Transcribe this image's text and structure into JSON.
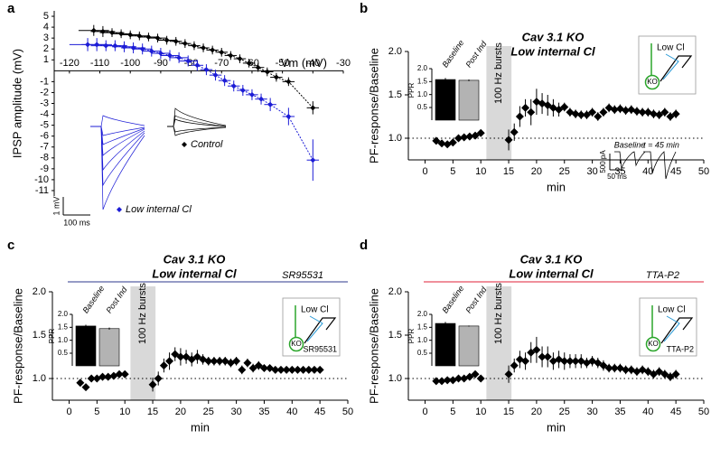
{
  "chart_data": [
    {
      "type": "line",
      "panel": "a",
      "xlabel": "Vm (mV)",
      "ylabel": "IPSP amplitude (mV)",
      "xlim": [
        -125,
        -30
      ],
      "xticks": [
        -120,
        -110,
        -100,
        -90,
        -80,
        -70,
        -60,
        -50,
        -40,
        -30
      ],
      "ylim": [
        -11.5,
        5.5
      ],
      "yticks": [
        5,
        4,
        3,
        2,
        1,
        -1,
        -2,
        -3,
        -4,
        -5,
        -6,
        -7,
        -8,
        -9,
        -10,
        -11
      ],
      "scale_bar": [
        "1 mV",
        "100 ms"
      ],
      "series": [
        {
          "name": "Control",
          "color": "#000000",
          "x": [
            -112,
            -109,
            -106,
            -103,
            -100,
            -97,
            -94,
            -91,
            -88,
            -85,
            -82,
            -79,
            -76,
            -73,
            -70,
            -67,
            -64,
            -61,
            -58,
            -55,
            -52,
            -48,
            -40
          ],
          "values": [
            3.7,
            3.6,
            3.5,
            3.4,
            3.3,
            3.2,
            3.1,
            3.0,
            2.8,
            2.7,
            2.5,
            2.3,
            2.1,
            1.9,
            1.7,
            1.4,
            1.1,
            0.7,
            0.3,
            -0.1,
            -0.6,
            -1.0,
            -3.4
          ],
          "errors": [
            0.5,
            0.5,
            0.4,
            0.4,
            0.4,
            0.4,
            0.4,
            0.4,
            0.4,
            0.4,
            0.4,
            0.4,
            0.4,
            0.4,
            0.4,
            0.4,
            0.4,
            0.4,
            0.4,
            0.4,
            0.4,
            0.4,
            0.6
          ],
          "xerrors": [
            5,
            4,
            4,
            3,
            3,
            3,
            3,
            3,
            3,
            2,
            2,
            2,
            2,
            2,
            2,
            2,
            2,
            2,
            2,
            2,
            2,
            2,
            2
          ]
        },
        {
          "name": "Low internal Cl",
          "color": "#1c1cd6",
          "x": [
            -114,
            -111,
            -108,
            -105,
            -102,
            -99,
            -96,
            -93,
            -90,
            -87,
            -84,
            -81,
            -78,
            -75,
            -72,
            -69,
            -66,
            -63,
            -60,
            -57,
            -54,
            -48,
            -40
          ],
          "values": [
            2.4,
            2.4,
            2.3,
            2.3,
            2.2,
            2.1,
            2.0,
            1.8,
            1.6,
            1.4,
            1.2,
            0.9,
            0.5,
            0.1,
            -0.4,
            -0.9,
            -1.4,
            -1.8,
            -2.2,
            -2.6,
            -3.1,
            -4.2,
            -8.2
          ],
          "errors": [
            0.6,
            0.6,
            0.5,
            0.5,
            0.5,
            0.5,
            0.5,
            0.5,
            0.5,
            0.5,
            0.5,
            0.5,
            0.5,
            0.5,
            0.5,
            0.5,
            0.5,
            0.5,
            0.5,
            0.5,
            0.6,
            0.8,
            1.9
          ],
          "xerrors": [
            6,
            5,
            5,
            4,
            4,
            4,
            3,
            3,
            3,
            3,
            3,
            3,
            2,
            2,
            2,
            2,
            2,
            2,
            2,
            2,
            2,
            2,
            2
          ]
        }
      ]
    },
    {
      "type": "scatter",
      "panel": "b",
      "title": "Cav 3.1 KO",
      "subtitle": "Low internal Cl",
      "xlabel": "min",
      "ylabel": "PF-response/Baseline",
      "xlim": [
        -3,
        50
      ],
      "xticks": [
        0,
        5,
        10,
        15,
        20,
        25,
        30,
        35,
        40,
        45,
        50
      ],
      "ylim": [
        0.75,
        2.0
      ],
      "yticks": [
        {
          "value": 1,
          "label": "1.0"
        },
        {
          "value": 1.5,
          "label": "1.5"
        },
        {
          "value": 2,
          "label": "2.0"
        }
      ],
      "reference_line": 1,
      "color": "#000000",
      "burst": {
        "label": "100 Hz bursts",
        "range": [
          11,
          15.5
        ]
      },
      "x": [
        2,
        3,
        4,
        5,
        6,
        7,
        8,
        9,
        10,
        15,
        16,
        17,
        18,
        19,
        20,
        21,
        22,
        23,
        24,
        25,
        26,
        27,
        28,
        29,
        30,
        31,
        32,
        33,
        34,
        35,
        36,
        37,
        38,
        39,
        40,
        41,
        42,
        43,
        44,
        45
      ],
      "values": [
        0.97,
        0.94,
        0.93,
        0.95,
        1.0,
        1.01,
        1.02,
        1.03,
        1.06,
        0.98,
        1.07,
        1.25,
        1.35,
        1.3,
        1.42,
        1.4,
        1.38,
        1.35,
        1.33,
        1.36,
        1.3,
        1.28,
        1.27,
        1.27,
        1.3,
        1.25,
        1.3,
        1.35,
        1.33,
        1.34,
        1.32,
        1.33,
        1.31,
        1.3,
        1.3,
        1.28,
        1.27,
        1.3,
        1.25,
        1.28
      ],
      "errors": [
        0.03,
        0.03,
        0.03,
        0.03,
        0.03,
        0.03,
        0.03,
        0.03,
        0.03,
        0.12,
        0.1,
        0.12,
        0.1,
        0.15,
        0.15,
        0.12,
        0.12,
        0.1,
        0.08,
        0.05,
        0.05,
        0.05,
        0.05,
        0.05,
        0.05,
        0.05,
        0.05,
        0.05,
        0.05,
        0.05,
        0.05,
        0.05,
        0.05,
        0.05,
        0.05,
        0.05,
        0.05,
        0.05,
        0.05,
        0.05
      ],
      "inset_bar": {
        "type": "bar",
        "ylabel": "PPR",
        "categories": [
          "Baseline",
          "Post Ind"
        ],
        "values": [
          1.58,
          1.55
        ],
        "errors": [
          0.06,
          0.03
        ],
        "colors": [
          "#000000",
          "#b3b3b3"
        ],
        "ylim": [
          0.5,
          2.0
        ],
        "yticks": [
          {
            "value": 0.5,
            "label": "0.5"
          },
          {
            "value": 1,
            "label": "1.0"
          },
          {
            "value": 1.5,
            "label": "1.5"
          },
          {
            "value": 2,
            "label": "2.0"
          }
        ]
      },
      "schematic": {
        "pipette": "Low Cl",
        "cell": "KO"
      },
      "traces": {
        "labels": [
          "Baseline",
          "t = 45 min"
        ],
        "scale": [
          "500 pA",
          "50 ms"
        ]
      }
    },
    {
      "type": "scatter",
      "panel": "c",
      "title": "Cav 3.1 KO",
      "subtitle": "Low internal Cl",
      "drug": "SR95531",
      "drug_color": "#2e3a8c",
      "xlabel": "min",
      "ylabel": "PF-response/Baseline",
      "xlim": [
        -3,
        50
      ],
      "xticks": [
        0,
        5,
        10,
        15,
        20,
        25,
        30,
        35,
        40,
        45,
        50
      ],
      "ylim": [
        0.75,
        2.0
      ],
      "yticks": [
        {
          "value": 1,
          "label": "1.0"
        },
        {
          "value": 1.5,
          "label": "1.5"
        },
        {
          "value": 2,
          "label": "2.0"
        }
      ],
      "reference_line": 1,
      "color": "#000000",
      "burst": {
        "label": "100 Hz bursts",
        "range": [
          11,
          15.5
        ]
      },
      "x": [
        2,
        3,
        4,
        5,
        6,
        7,
        8,
        9,
        10,
        15,
        16,
        17,
        18,
        19,
        20,
        21,
        22,
        23,
        24,
        25,
        26,
        27,
        28,
        29,
        30,
        31,
        32,
        33,
        34,
        35,
        36,
        37,
        38,
        39,
        40,
        41,
        42,
        43,
        44,
        45
      ],
      "values": [
        0.95,
        0.9,
        1.0,
        1.0,
        1.02,
        1.02,
        1.03,
        1.05,
        1.05,
        0.93,
        1.0,
        1.15,
        1.2,
        1.28,
        1.25,
        1.25,
        1.22,
        1.25,
        1.22,
        1.2,
        1.2,
        1.2,
        1.2,
        1.18,
        1.2,
        1.1,
        1.18,
        1.12,
        1.15,
        1.12,
        1.12,
        1.1,
        1.1,
        1.1,
        1.1,
        1.1,
        1.1,
        1.1,
        1.1,
        1.1
      ],
      "errors": [
        0.03,
        0.03,
        0.03,
        0.03,
        0.03,
        0.03,
        0.03,
        0.03,
        0.03,
        0.08,
        0.08,
        0.08,
        0.1,
        0.08,
        0.1,
        0.08,
        0.08,
        0.08,
        0.06,
        0.05,
        0.05,
        0.05,
        0.05,
        0.05,
        0.05,
        0.05,
        0.05,
        0.05,
        0.05,
        0.04,
        0.04,
        0.04,
        0.04,
        0.04,
        0.04,
        0.04,
        0.04,
        0.04,
        0.04,
        0.04
      ],
      "inset_bar": {
        "type": "bar",
        "ylabel": "PPR",
        "categories": [
          "Baseline",
          "Post Ind"
        ],
        "values": [
          1.55,
          1.45
        ],
        "errors": [
          0.05,
          0.04
        ],
        "colors": [
          "#000000",
          "#b3b3b3"
        ],
        "ylim": [
          0.5,
          2.0
        ],
        "yticks": [
          {
            "value": 0.5,
            "label": "0.5"
          },
          {
            "value": 1,
            "label": "1.0"
          },
          {
            "value": 1.5,
            "label": "1.5"
          },
          {
            "value": 2,
            "label": "2.0"
          }
        ]
      },
      "schematic": {
        "pipette": "Low Cl",
        "cell": "KO"
      }
    },
    {
      "type": "scatter",
      "panel": "d",
      "title": "Cav 3.1 KO",
      "subtitle": "Low internal Cl",
      "drug": "TTA-P2",
      "drug_color": "#e0213a",
      "xlabel": "min",
      "ylabel": "PF-response/Baseline",
      "xlim": [
        -3,
        50
      ],
      "xticks": [
        0,
        5,
        10,
        15,
        20,
        25,
        30,
        35,
        40,
        45,
        50
      ],
      "ylim": [
        0.75,
        2.0
      ],
      "yticks": [
        {
          "value": 1,
          "label": "1.0"
        },
        {
          "value": 1.5,
          "label": "1.5"
        },
        {
          "value": 2,
          "label": "2.0"
        }
      ],
      "reference_line": 1,
      "color": "#000000",
      "burst": {
        "label": "100 Hz bursts",
        "range": [
          11,
          15.5
        ]
      },
      "x": [
        2,
        3,
        4,
        5,
        6,
        7,
        8,
        9,
        10,
        15,
        16,
        17,
        18,
        19,
        20,
        21,
        22,
        23,
        24,
        25,
        26,
        27,
        28,
        29,
        30,
        31,
        32,
        33,
        34,
        35,
        36,
        37,
        38,
        39,
        40,
        41,
        42,
        43,
        44,
        45
      ],
      "values": [
        0.97,
        0.97,
        0.98,
        0.98,
        1.0,
        1.0,
        1.02,
        1.05,
        1.0,
        1.05,
        1.15,
        1.22,
        1.2,
        1.3,
        1.33,
        1.25,
        1.25,
        1.2,
        1.22,
        1.2,
        1.2,
        1.2,
        1.2,
        1.18,
        1.2,
        1.18,
        1.15,
        1.12,
        1.12,
        1.12,
        1.1,
        1.1,
        1.08,
        1.1,
        1.08,
        1.05,
        1.08,
        1.05,
        1.02,
        1.05
      ],
      "errors": [
        0.03,
        0.03,
        0.03,
        0.03,
        0.03,
        0.03,
        0.03,
        0.03,
        0.03,
        0.1,
        0.08,
        0.1,
        0.1,
        0.12,
        0.15,
        0.12,
        0.12,
        0.1,
        0.1,
        0.1,
        0.08,
        0.08,
        0.08,
        0.06,
        0.06,
        0.06,
        0.06,
        0.05,
        0.05,
        0.05,
        0.05,
        0.05,
        0.05,
        0.05,
        0.05,
        0.05,
        0.05,
        0.05,
        0.05,
        0.05
      ],
      "inset_bar": {
        "type": "bar",
        "ylabel": "PPR",
        "categories": [
          "Baseline",
          "Post Ind"
        ],
        "values": [
          1.65,
          1.55
        ],
        "errors": [
          0.06,
          0.02
        ],
        "colors": [
          "#000000",
          "#b3b3b3"
        ],
        "ylim": [
          0.5,
          2.0
        ],
        "yticks": [
          {
            "value": 0.5,
            "label": "0.5"
          },
          {
            "value": 1,
            "label": "1.0"
          },
          {
            "value": 1.5,
            "label": "1.5"
          },
          {
            "value": 2,
            "label": "2.0"
          }
        ]
      },
      "schematic": {
        "pipette": "Low Cl",
        "cell": "KO"
      }
    }
  ]
}
